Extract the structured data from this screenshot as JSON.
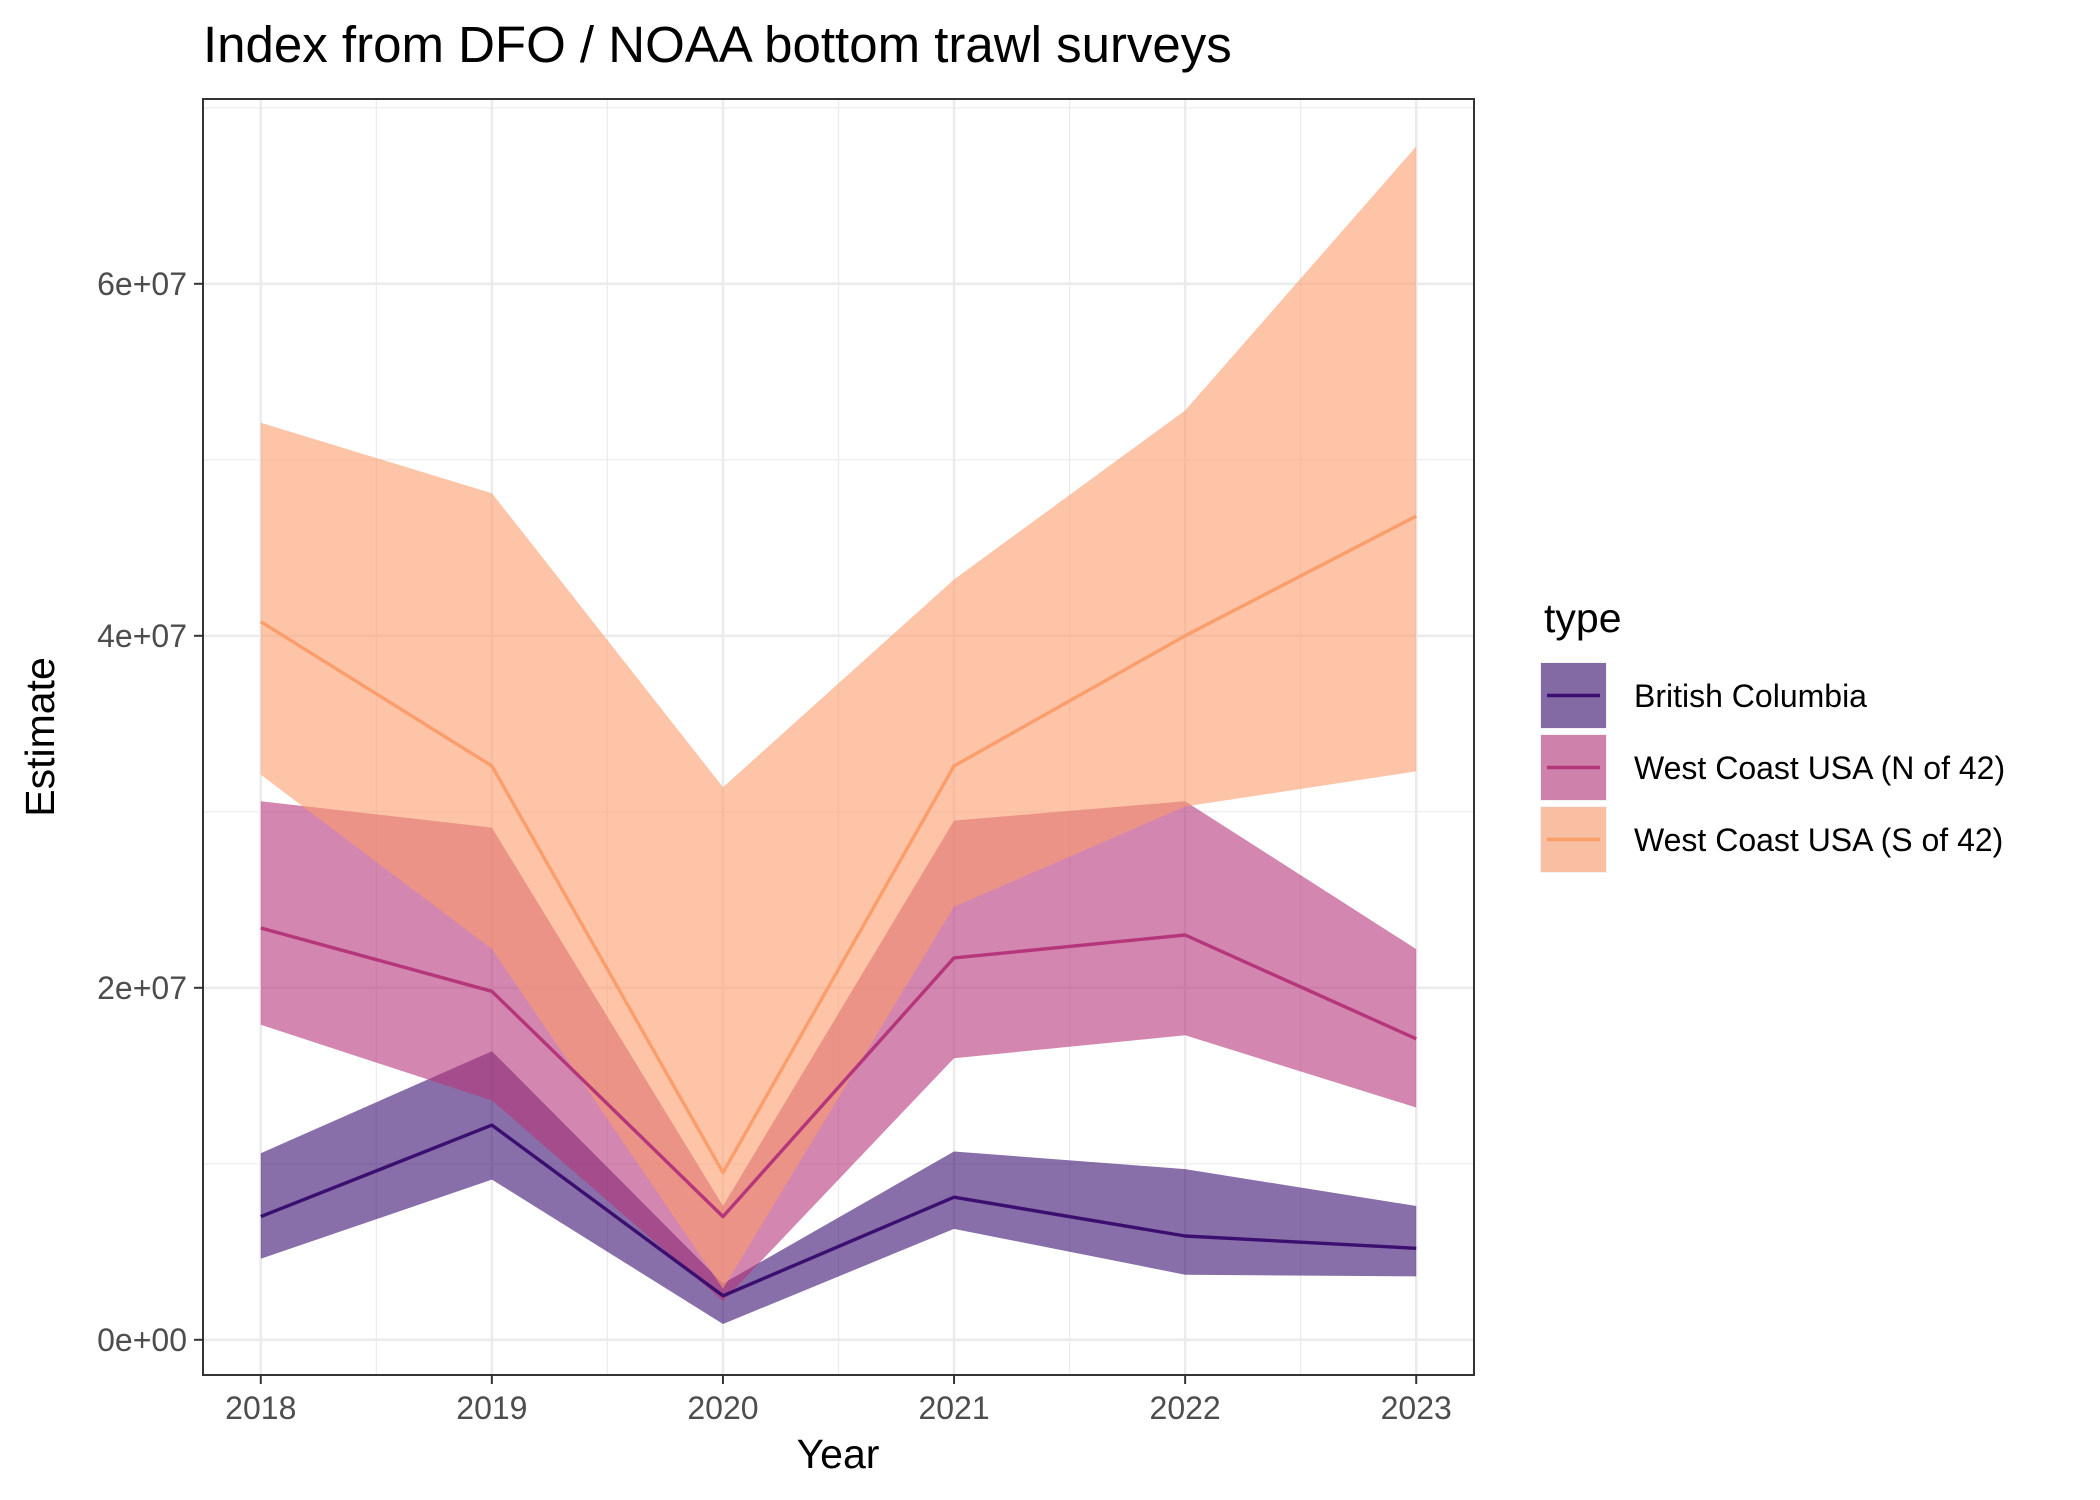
{
  "chart_data": {
    "type": "line",
    "title": "Index from DFO / NOAA bottom trawl surveys",
    "xlabel": "Year",
    "ylabel": "Estimate",
    "x": [
      2018,
      2019,
      2020,
      2021,
      2022,
      2023
    ],
    "x_tick_labels": [
      "2018",
      "2019",
      "2020",
      "2021",
      "2022",
      "2023"
    ],
    "xlim": [
      2017.75,
      2023.25
    ],
    "ylim": [
      -2000000,
      70500000
    ],
    "y_ticks": [
      0,
      20000000,
      40000000,
      60000000
    ],
    "y_tick_labels": [
      "0e+00",
      "2e+07",
      "4e+07",
      "6e+07"
    ],
    "grid": true,
    "legend": {
      "title": "type",
      "position": "right"
    },
    "series": [
      {
        "name": "British Columbia",
        "color": "#3b0f70",
        "fill": "#3b0f70",
        "values": [
          7000000,
          12200000,
          2500000,
          8100000,
          5900000,
          5200000
        ],
        "lower": [
          4600000,
          9100000,
          900000,
          6300000,
          3700000,
          3600000
        ],
        "upper": [
          10600000,
          16400000,
          3200000,
          10700000,
          9700000,
          7600000
        ]
      },
      {
        "name": "West Coast USA (N of 42)",
        "color": "#b5367a",
        "fill": "#b5367a",
        "values": [
          23400000,
          19800000,
          7000000,
          21700000,
          23000000,
          17100000
        ],
        "lower": [
          17900000,
          13600000,
          2200000,
          16000000,
          17300000,
          13200000
        ],
        "upper": [
          30600000,
          29100000,
          7600000,
          29500000,
          30600000,
          22200000
        ]
      },
      {
        "name": "West Coast USA (S of 42)",
        "color": "#fc9d6c",
        "fill": "#fc9d6c",
        "values": [
          40800000,
          32600000,
          9500000,
          32600000,
          40000000,
          46800000
        ],
        "lower": [
          32100000,
          22200000,
          2900000,
          24600000,
          30300000,
          32300000
        ],
        "upper": [
          52100000,
          48100000,
          31400000,
          43200000,
          52800000,
          67800000
        ]
      }
    ]
  }
}
